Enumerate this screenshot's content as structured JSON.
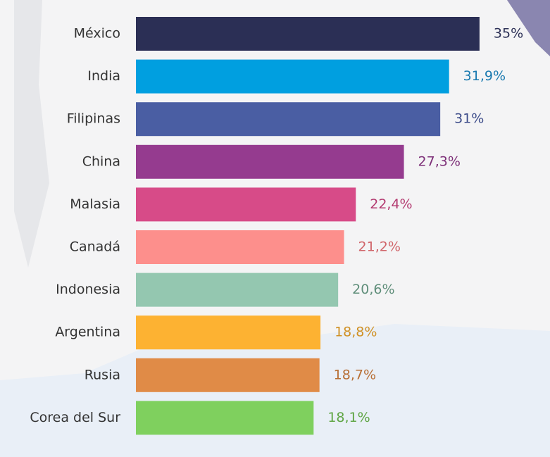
{
  "chart_data": {
    "type": "hbar",
    "categories": [
      "México",
      "India",
      "Filipinas",
      "China",
      "Malasia",
      "Canadá",
      "Indonesia",
      "Argentina",
      "Rusia",
      "Corea del Sur"
    ],
    "values": [
      35,
      31.9,
      31,
      27.3,
      22.4,
      21.2,
      20.6,
      18.8,
      18.7,
      18.1
    ],
    "value_labels": [
      "35%",
      "31,9%",
      "31%",
      "27,3%",
      "22,4%",
      "21,2%",
      "20,6%",
      "18,8%",
      "18,7%",
      "18,1%"
    ],
    "colors": [
      "#2b2f55",
      "#009fe0",
      "#4a5ea3",
      "#953b8f",
      "#d74b88",
      "#fd8f8c",
      "#94c7b0",
      "#fdb232",
      "#e08b47",
      "#7fd05e"
    ],
    "label_colors": [
      "#2b2f55",
      "#1a7ab0",
      "#3d4c8a",
      "#7d2f78",
      "#b33a70",
      "#d0656a",
      "#5f8e7a",
      "#d09125",
      "#b86f35",
      "#5fa544"
    ]
  }
}
